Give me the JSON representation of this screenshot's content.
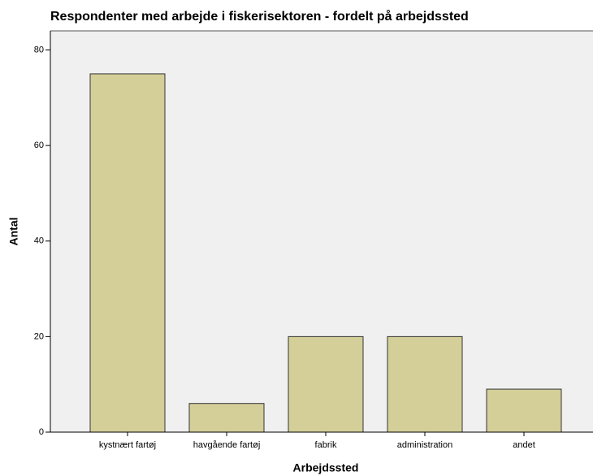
{
  "chart_data": {
    "type": "bar",
    "title": "Respondenter med arbejde i fiskerisektoren - fordelt på arbejdssted",
    "x_label": "Arbejdssted",
    "y_label": "Antal",
    "categories": [
      "kystnært fartøj",
      "havgående fartøj",
      "fabrik",
      "administration",
      "andet"
    ],
    "values": [
      75,
      6,
      20,
      20,
      9
    ],
    "color": "#d4cf99",
    "ylim": [
      0,
      84
    ],
    "yticks": [
      0,
      20,
      40,
      60,
      80
    ],
    "grid": false
  }
}
